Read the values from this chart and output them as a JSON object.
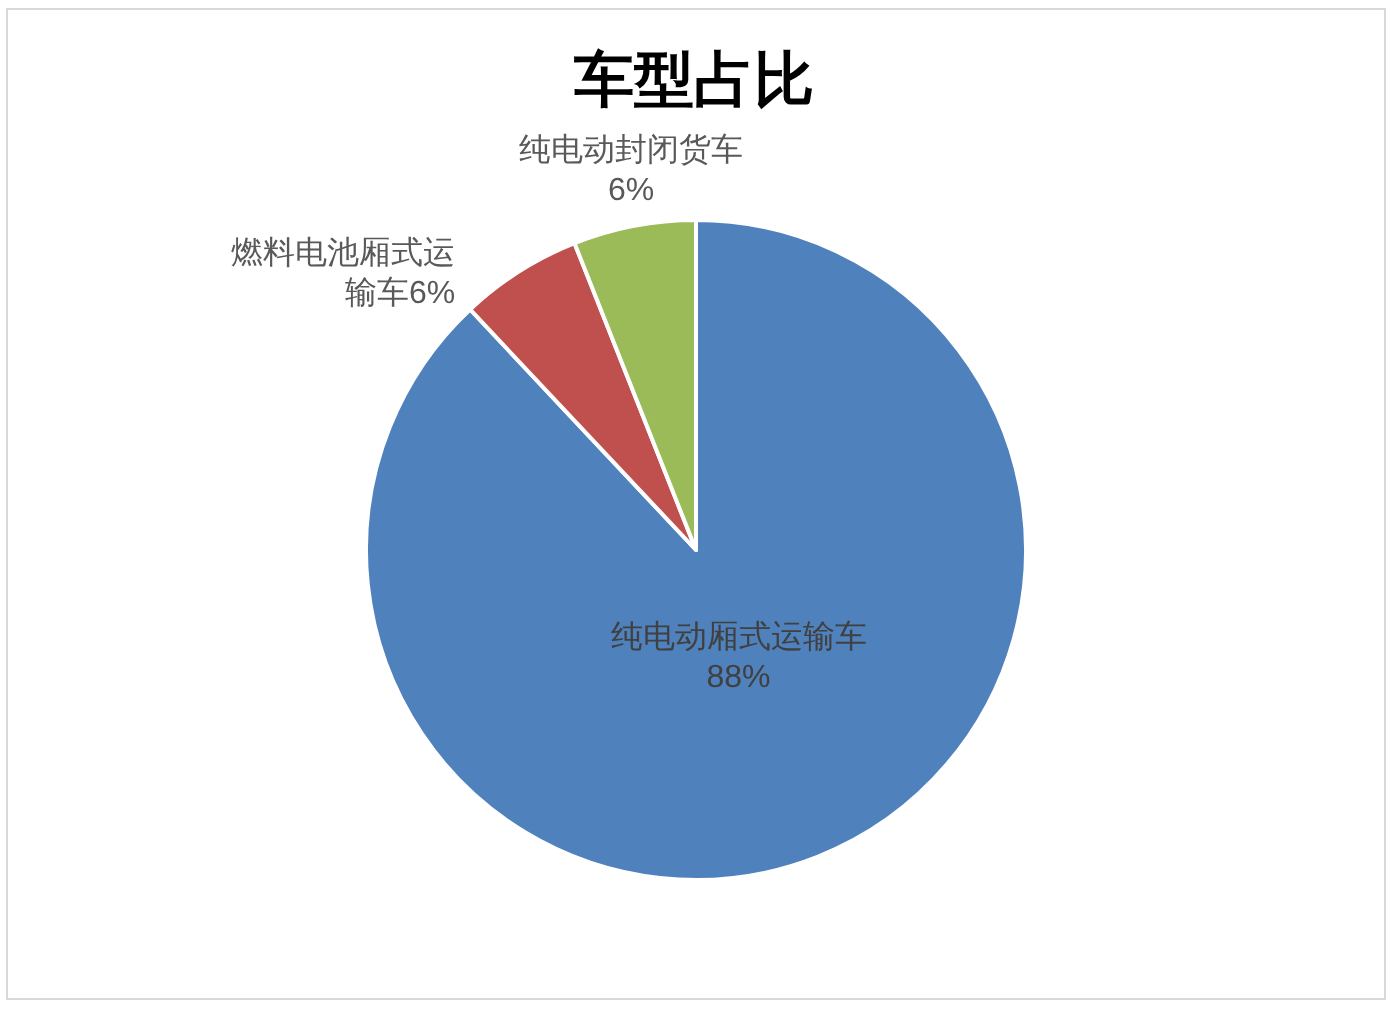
{
  "chart_data": {
    "type": "pie",
    "title": "车型占比",
    "categories": [
      "纯电动厢式运输车",
      "燃料电池厢式运输车",
      "纯电动封闭货车"
    ],
    "values": [
      88,
      6,
      6
    ],
    "colors": [
      "#4f81bd",
      "#c0504d",
      "#9bbb59"
    ],
    "value_labels": [
      "88%",
      "6%",
      "6%"
    ]
  }
}
